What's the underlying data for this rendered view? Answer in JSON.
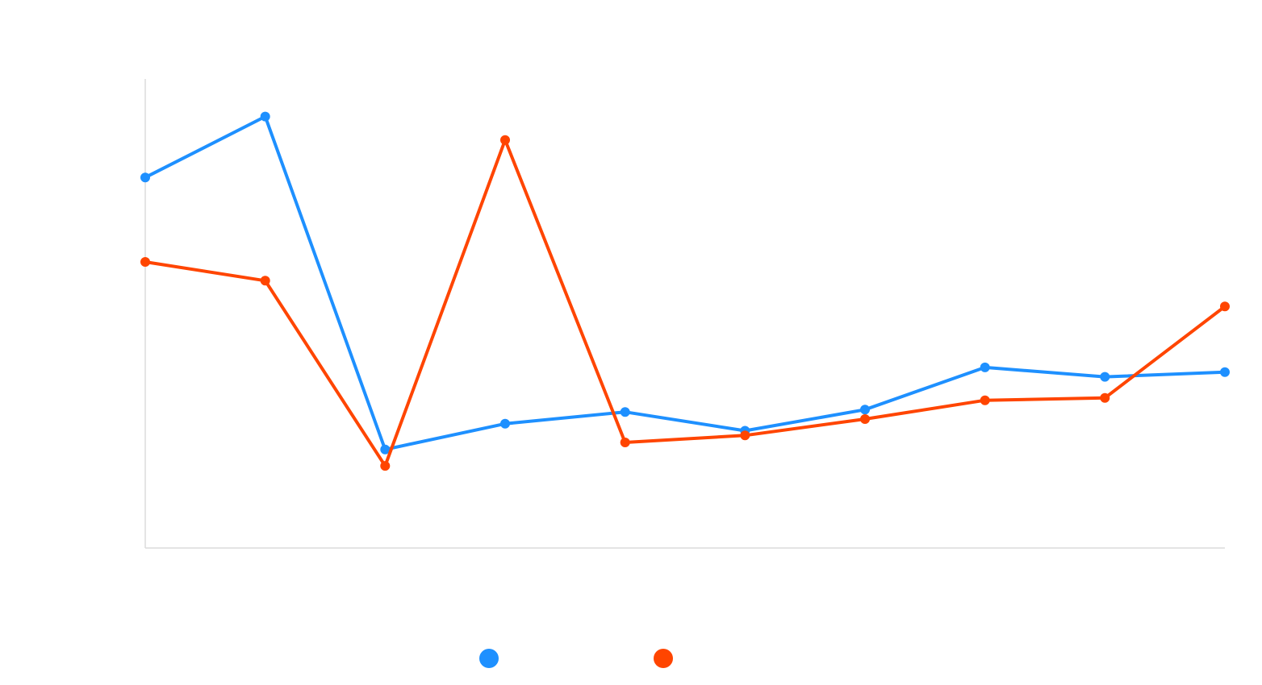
{
  "chart_data": {
    "type": "line",
    "title": "",
    "xlabel": "",
    "ylabel": "",
    "categories": [
      "",
      "",
      "",
      "",
      "",
      "",
      "",
      "",
      "",
      ""
    ],
    "ylim": [
      0,
      100
    ],
    "grid": false,
    "legend_position": "bottom",
    "series": [
      {
        "name": "",
        "color": "#1e90ff",
        "values": [
          79,
          92,
          21,
          26.5,
          29,
          25,
          29.5,
          38.5,
          36.5,
          37.5
        ]
      },
      {
        "name": "",
        "color": "#ff4500",
        "values": [
          61,
          57,
          17.5,
          87,
          22.5,
          24,
          27.5,
          31.5,
          32,
          51.5
        ]
      }
    ]
  }
}
